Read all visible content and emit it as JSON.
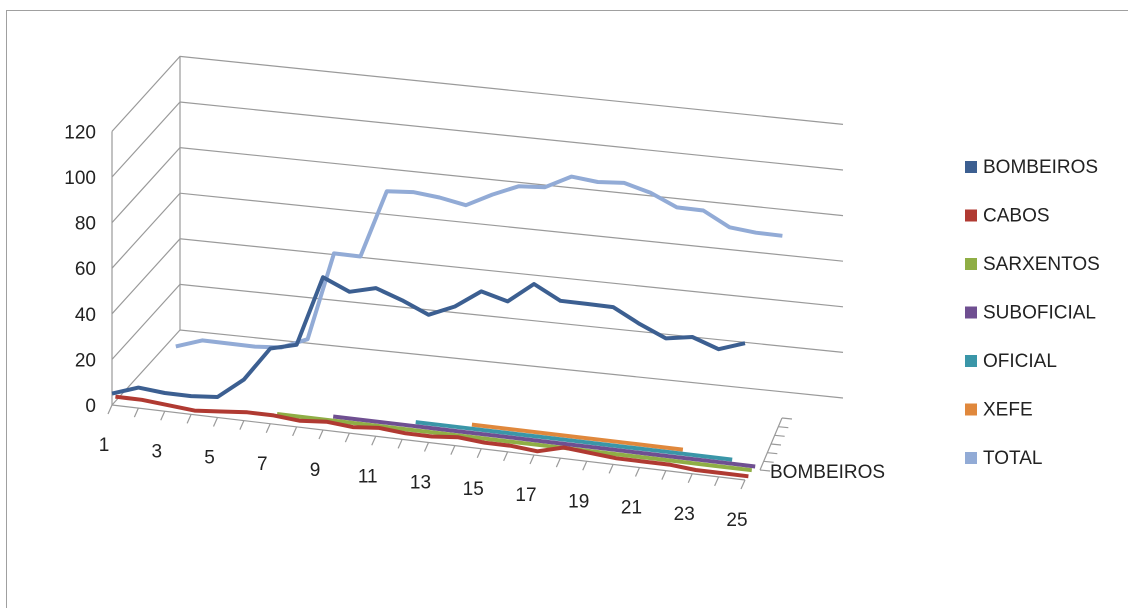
{
  "chart_data": {
    "type": "line",
    "title": "",
    "xlabel": "",
    "ylabel": "",
    "ylim": [
      0,
      120
    ],
    "y_ticks": [
      "0",
      "20",
      "40",
      "60",
      "80",
      "100",
      "120"
    ],
    "x_tick_labels": [
      "1",
      "3",
      "5",
      "7",
      "9",
      "11",
      "13",
      "15",
      "17",
      "19",
      "21",
      "23",
      "25"
    ],
    "depth_label": "BOMBEIROS",
    "grid": true,
    "legend_position": "right",
    "x": [
      1,
      2,
      3,
      4,
      5,
      6,
      7,
      8,
      9,
      10,
      11,
      12,
      13,
      14,
      15,
      16,
      17,
      18,
      19,
      20,
      21,
      22,
      23,
      24,
      25
    ],
    "series": [
      {
        "name": "BOMBEIROS",
        "color": "#3c5f91",
        "values": [
          5,
          9,
          8,
          8,
          9,
          18,
          33,
          36,
          67,
          62,
          65,
          61,
          56,
          61,
          69,
          66,
          75,
          69,
          69,
          69,
          63,
          58,
          60,
          56,
          60
        ]
      },
      {
        "name": "CABOS",
        "color": "#b03a32",
        "values": [
          2,
          2,
          1,
          0,
          1,
          2,
          2,
          1,
          2,
          1,
          2,
          1,
          1,
          2,
          1,
          1,
          0,
          3,
          2,
          1,
          1,
          1,
          0,
          0,
          0
        ]
      },
      {
        "name": "SARXENTOS",
        "color": "#8fae45",
        "values": [
          null,
          null,
          null,
          null,
          null,
          null,
          1,
          1,
          1,
          1,
          1,
          1,
          1,
          1,
          1,
          1,
          1,
          1,
          1,
          1,
          1,
          1,
          1,
          1,
          1
        ]
      },
      {
        "name": "SUBOFICIAL",
        "color": "#6f4f91",
        "values": [
          null,
          null,
          null,
          null,
          null,
          null,
          null,
          null,
          1,
          1,
          1,
          1,
          1,
          1,
          1,
          1,
          1,
          1,
          1,
          1,
          1,
          1,
          1,
          1,
          1
        ]
      },
      {
        "name": "OFICIAL",
        "color": "#3a96a8",
        "values": [
          null,
          null,
          null,
          null,
          null,
          null,
          null,
          null,
          null,
          null,
          null,
          1,
          1,
          1,
          1,
          1,
          1,
          1,
          1,
          1,
          1,
          1,
          1,
          1,
          null
        ]
      },
      {
        "name": "XEFE",
        "color": "#e0883c",
        "values": [
          null,
          null,
          null,
          null,
          null,
          null,
          null,
          null,
          null,
          null,
          null,
          null,
          null,
          1,
          1,
          1,
          1,
          1,
          1,
          1,
          1,
          1,
          null,
          null,
          null
        ]
      },
      {
        "name": "TOTAL",
        "color": "#92abd6",
        "values": [
          null,
          9,
          13,
          13,
          13,
          14,
          19,
          58,
          58,
          88,
          89,
          88,
          86,
          92,
          97,
          98,
          104,
          103,
          104,
          101,
          96,
          96,
          90,
          89,
          89
        ]
      }
    ]
  }
}
